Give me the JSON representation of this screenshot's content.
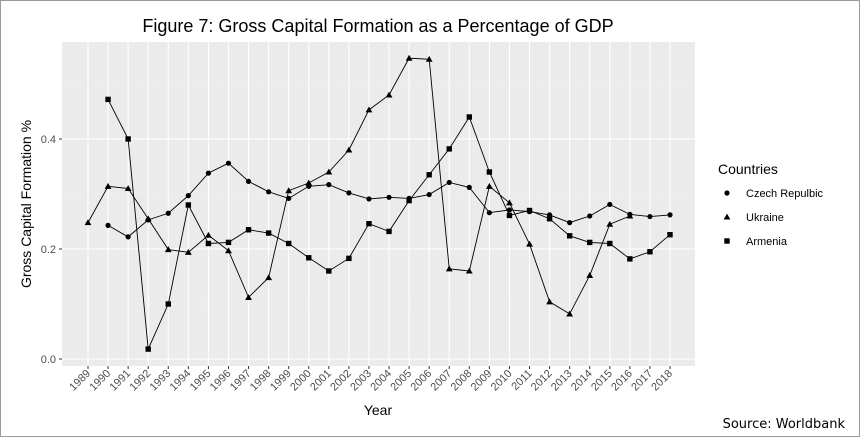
{
  "chart_data": {
    "type": "line",
    "title": "Figure 7: Gross Capital Formation as a Percentage of GDP",
    "xlabel": "Year",
    "ylabel": "Gross Capital Formation %",
    "xlim": [
      1989,
      2018
    ],
    "ylim": [
      0,
      0.55
    ],
    "yticks": [
      0.0,
      0.2,
      0.4
    ],
    "ytick_labels": [
      "0.0",
      "0.2",
      "0.4"
    ],
    "x": [
      1989,
      1990,
      1991,
      1992,
      1993,
      1994,
      1995,
      1996,
      1997,
      1998,
      1999,
      2000,
      2001,
      2002,
      2003,
      2004,
      2005,
      2006,
      2007,
      2008,
      2009,
      2010,
      2011,
      2012,
      2013,
      2014,
      2015,
      2016,
      2017,
      2018
    ],
    "xtick_labels": [
      "1989",
      "1990",
      "1991",
      "1992",
      "1993",
      "1994",
      "1995",
      "1996",
      "1997",
      "1998",
      "1999",
      "2000",
      "2001",
      "2002",
      "2003",
      "2004",
      "2005",
      "2006",
      "2007",
      "2008",
      "2009",
      "2010",
      "2011",
      "2012",
      "2013",
      "2014",
      "2015",
      "2016",
      "2017",
      "2018"
    ],
    "grid": true,
    "legend": {
      "title": "Countries",
      "position": "right"
    },
    "series": [
      {
        "name": "Czech Repulbic",
        "marker": "circle",
        "points": [
          [
            1990,
            0.243
          ],
          [
            1991,
            0.222
          ],
          [
            1992,
            0.253
          ],
          [
            1993,
            0.265
          ],
          [
            1994,
            0.297
          ],
          [
            1995,
            0.338
          ],
          [
            1996,
            0.356
          ],
          [
            1997,
            0.323
          ],
          [
            1998,
            0.304
          ],
          [
            1999,
            0.292
          ],
          [
            2000,
            0.314
          ],
          [
            2001,
            0.317
          ],
          [
            2002,
            0.302
          ],
          [
            2003,
            0.291
          ],
          [
            2004,
            0.294
          ],
          [
            2005,
            0.292
          ],
          [
            2006,
            0.299
          ],
          [
            2007,
            0.321
          ],
          [
            2008,
            0.312
          ],
          [
            2009,
            0.266
          ],
          [
            2010,
            0.271
          ],
          [
            2011,
            0.268
          ],
          [
            2012,
            0.262
          ],
          [
            2013,
            0.248
          ],
          [
            2014,
            0.26
          ],
          [
            2015,
            0.281
          ],
          [
            2016,
            0.263
          ],
          [
            2017,
            0.259
          ],
          [
            2018,
            0.262
          ]
        ]
      },
      {
        "name": "Ukraine",
        "marker": "triangle",
        "points": [
          [
            1989,
            0.248
          ],
          [
            1990,
            0.314
          ],
          [
            1991,
            0.31
          ],
          [
            1992,
            0.255
          ],
          [
            1993,
            0.199
          ],
          [
            1994,
            0.194
          ],
          [
            1995,
            0.225
          ],
          [
            1996,
            0.197
          ],
          [
            1997,
            0.112
          ],
          [
            1998,
            0.148
          ],
          [
            1999,
            0.306
          ],
          [
            2000,
            0.32
          ],
          [
            2001,
            0.34
          ],
          [
            2002,
            0.38
          ],
          [
            2003,
            0.453
          ],
          [
            2004,
            0.48
          ],
          [
            2005,
            0.547
          ],
          [
            2006,
            0.545
          ],
          [
            2007,
            0.164
          ],
          [
            2008,
            0.16
          ],
          [
            2009,
            0.314
          ],
          [
            2010,
            0.284
          ],
          [
            2011,
            0.209
          ],
          [
            2012,
            0.104
          ],
          [
            2013,
            0.082
          ],
          [
            2014,
            0.152
          ],
          [
            2015,
            0.245
          ],
          [
            2016,
            0.26
          ]
        ]
      },
      {
        "name": "Armenia",
        "marker": "square",
        "points": [
          [
            1990,
            0.472
          ],
          [
            1991,
            0.4
          ],
          [
            1992,
            0.018
          ],
          [
            1993,
            0.1
          ],
          [
            1994,
            0.28
          ],
          [
            1995,
            0.21
          ],
          [
            1996,
            0.212
          ],
          [
            1997,
            0.235
          ],
          [
            1998,
            0.229
          ],
          [
            1999,
            0.21
          ],
          [
            2000,
            0.184
          ],
          [
            2001,
            0.16
          ],
          [
            2002,
            0.183
          ],
          [
            2003,
            0.246
          ],
          [
            2004,
            0.232
          ],
          [
            2005,
            0.288
          ],
          [
            2006,
            0.335
          ],
          [
            2007,
            0.382
          ],
          [
            2008,
            0.44
          ],
          [
            2009,
            0.34
          ],
          [
            2010,
            0.261
          ],
          [
            2011,
            0.27
          ],
          [
            2012,
            0.255
          ],
          [
            2013,
            0.224
          ],
          [
            2014,
            0.212
          ],
          [
            2015,
            0.21
          ],
          [
            2016,
            0.182
          ],
          [
            2017,
            0.195
          ],
          [
            2018,
            0.226
          ]
        ]
      }
    ],
    "annotations": [
      "Source: Worldbank"
    ]
  }
}
